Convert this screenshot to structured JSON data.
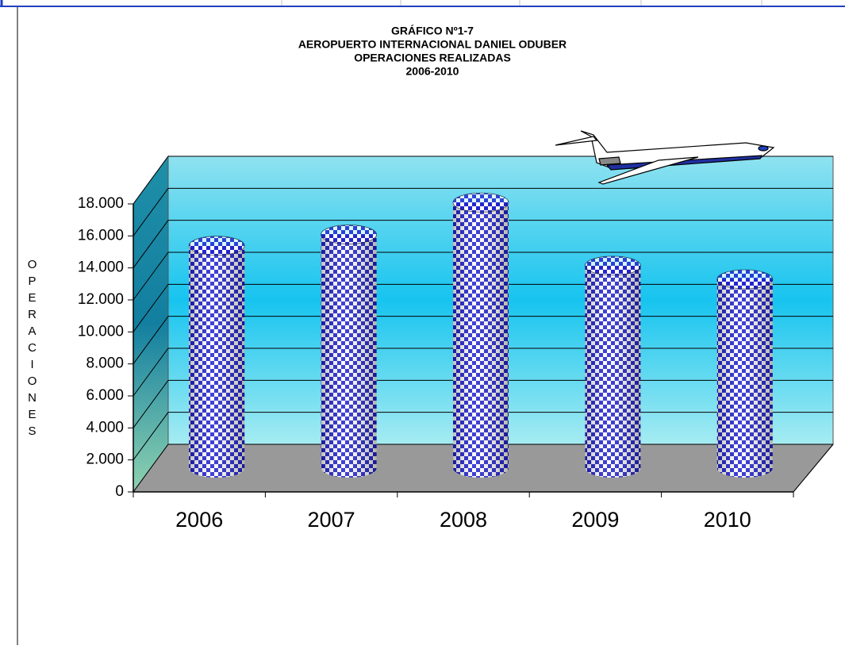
{
  "chart_data": {
    "type": "cylinder",
    "title": "GRÁFICO Nº1-7",
    "subtitle": [
      "AEROPUERTO INTERNACIONAL DANIEL ODUBER",
      "OPERACIONES REALIZADAS",
      "2006-2010"
    ],
    "y_label": "OPERACIONES",
    "categories": [
      "2006",
      "2007",
      "2008",
      "2009",
      "2010"
    ],
    "values": [
      13900,
      14600,
      16600,
      12650,
      11800
    ],
    "color": "#2020d0",
    "ylim": [
      0,
      18000
    ],
    "yticks": [
      0,
      {
        "value": 2000,
        "label": "2.000"
      },
      {
        "value": 4000,
        "label": "4.000"
      },
      {
        "value": 6000,
        "label": "6.000"
      },
      {
        "value": 8000,
        "label": "8.000"
      },
      {
        "value": 10000,
        "label": "10.000"
      },
      {
        "value": 12000,
        "label": "12.000"
      },
      {
        "value": 14000,
        "label": "14.000"
      },
      {
        "value": 16000,
        "label": "16.000"
      },
      {
        "value": 18000,
        "label": "18.000"
      }
    ],
    "grid": true
  }
}
